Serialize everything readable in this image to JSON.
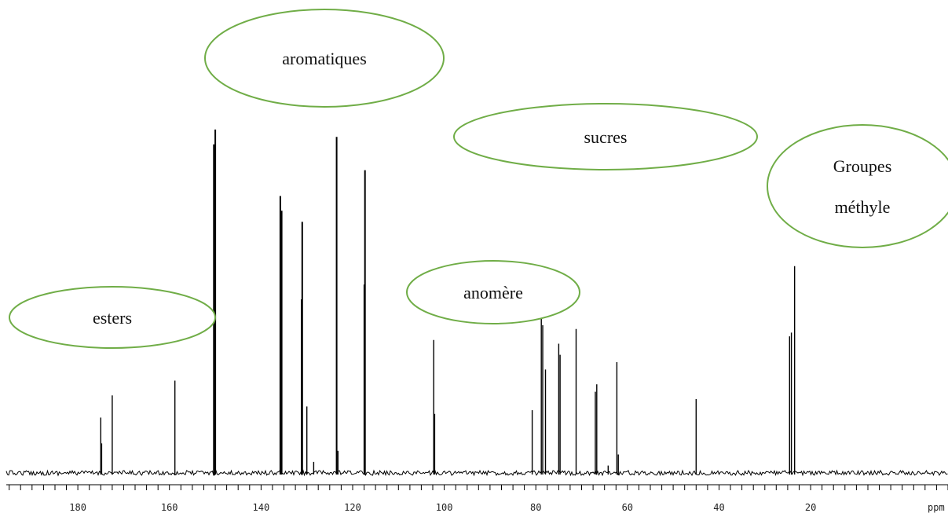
{
  "chart_data": {
    "type": "line",
    "subtype": "nmr-spectrum",
    "x_unit": "ppm",
    "x_reversed": true,
    "xlim": [
      197,
      -10
    ],
    "x_ticks": [
      180,
      160,
      140,
      120,
      100,
      80,
      60,
      40,
      20
    ],
    "minor_tick_step": 2.5,
    "grid": false,
    "y_relative_range": [
      0,
      100
    ],
    "peaks": [
      {
        "ppm": 175.0,
        "height": 15
      },
      {
        "ppm": 174.8,
        "height": 8
      },
      {
        "ppm": 172.5,
        "height": 21
      },
      {
        "ppm": 158.8,
        "height": 25
      },
      {
        "ppm": 150.3,
        "height": 89
      },
      {
        "ppm": 150.0,
        "height": 93
      },
      {
        "ppm": 135.8,
        "height": 75
      },
      {
        "ppm": 135.5,
        "height": 71
      },
      {
        "ppm": 131.0,
        "height": 68
      },
      {
        "ppm": 131.2,
        "height": 47
      },
      {
        "ppm": 130.0,
        "height": 18
      },
      {
        "ppm": 128.5,
        "height": 3
      },
      {
        "ppm": 123.5,
        "height": 91
      },
      {
        "ppm": 123.2,
        "height": 6
      },
      {
        "ppm": 117.3,
        "height": 82
      },
      {
        "ppm": 117.5,
        "height": 51
      },
      {
        "ppm": 102.3,
        "height": 36
      },
      {
        "ppm": 102.1,
        "height": 16
      },
      {
        "ppm": 80.8,
        "height": 17
      },
      {
        "ppm": 78.8,
        "height": 54
      },
      {
        "ppm": 78.5,
        "height": 40
      },
      {
        "ppm": 77.9,
        "height": 28
      },
      {
        "ppm": 75.0,
        "height": 35
      },
      {
        "ppm": 74.7,
        "height": 32
      },
      {
        "ppm": 71.2,
        "height": 39
      },
      {
        "ppm": 67.0,
        "height": 22
      },
      {
        "ppm": 66.7,
        "height": 24
      },
      {
        "ppm": 64.2,
        "height": 2
      },
      {
        "ppm": 62.3,
        "height": 30
      },
      {
        "ppm": 62.0,
        "height": 5
      },
      {
        "ppm": 45.0,
        "height": 20
      },
      {
        "ppm": 24.6,
        "height": 37
      },
      {
        "ppm": 24.2,
        "height": 38
      },
      {
        "ppm": 23.5,
        "height": 56
      }
    ],
    "annotations": [
      {
        "id": "esters",
        "lines": [
          "esters"
        ],
        "ppm": 172.5
      },
      {
        "id": "aromatiques",
        "lines": [
          "aromatiques"
        ],
        "ppm": 140.5
      },
      {
        "id": "anomere",
        "lines": [
          "anomère"
        ],
        "ppm": 102.3
      },
      {
        "id": "sucres",
        "lines": [
          "sucres"
        ],
        "ppm": 71.2
      },
      {
        "id": "methyle",
        "lines": [
          "Groupes",
          "méthyle"
        ],
        "ppm": 24.0
      }
    ],
    "colors": {
      "trace": "#000000",
      "annotation_border": "#70ad47",
      "background": "#ffffff"
    }
  }
}
